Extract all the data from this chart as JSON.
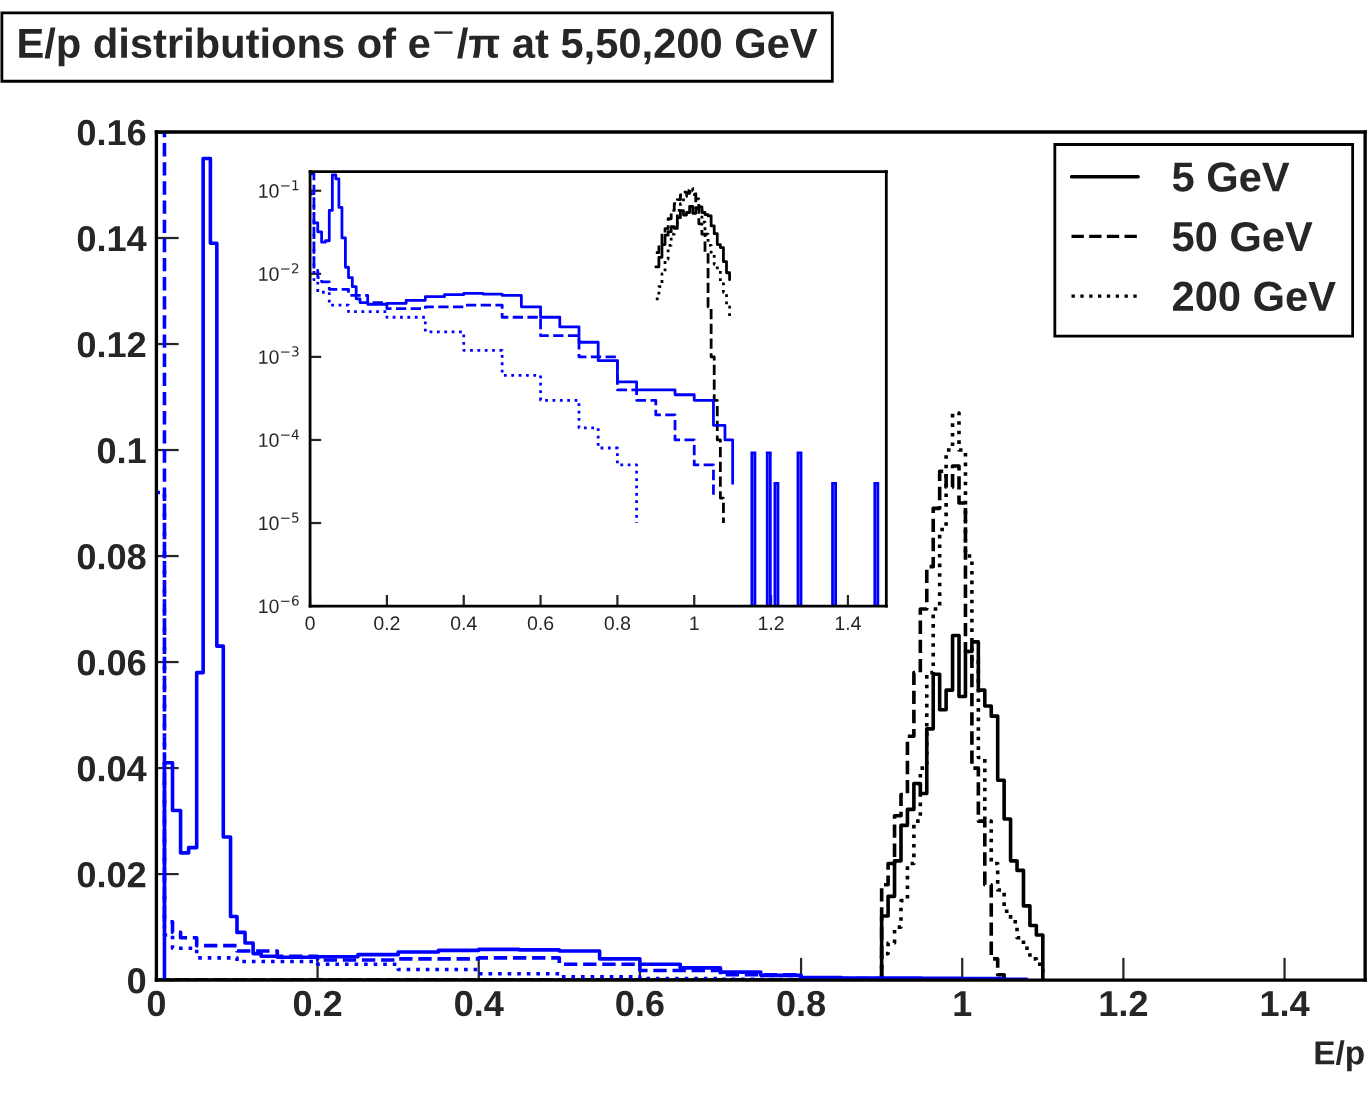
{
  "chart_data": [
    {
      "type": "step",
      "title": "E/p distributions of e$^{−}$/π at 5,50,200 GeV",
      "xlabel": "E/p",
      "xlim": [
        0,
        1.5
      ],
      "ylim": [
        0,
        0.16
      ],
      "xticks": [
        0,
        0.2,
        0.4,
        0.6,
        0.8,
        1,
        1.2,
        1.4
      ],
      "yticks": [
        0,
        0.02,
        0.04,
        0.06,
        0.08,
        0.1,
        0.12,
        0.14,
        0.16
      ],
      "grid": false,
      "legend": "top right",
      "series": [
        {
          "name": "5 GeV",
          "color": "#000000",
          "line_style": "solid",
          "x": [
            0,
            0.9,
            0.908,
            0.916,
            0.924,
            0.932,
            0.94,
            0.948,
            0.956,
            0.964,
            0.972,
            0.98,
            0.988,
            0.996,
            1.004,
            1.012,
            1.02,
            1.028,
            1.036,
            1.044,
            1.052,
            1.06,
            1.068,
            1.076,
            1.084,
            1.092,
            1.1
          ],
          "values": [
            0,
            0.0121,
            0.0158,
            0.0225,
            0.0292,
            0.0322,
            0.0371,
            0.0352,
            0.0474,
            0.0577,
            0.051,
            0.0547,
            0.065,
            0.0535,
            0.062,
            0.0638,
            0.0547,
            0.0517,
            0.0498,
            0.0377,
            0.0304,
            0.0225,
            0.0207,
            0.014,
            0.0103,
            0.0085,
            0
          ]
        },
        {
          "name": "50 GeV",
          "color": "#000000",
          "line_style": "dashed",
          "x": [
            0,
            0.9,
            0.908,
            0.916,
            0.924,
            0.932,
            0.94,
            0.948,
            0.956,
            0.964,
            0.972,
            0.98,
            0.988,
            0.996,
            1.004,
            1.012,
            1.02,
            1.028,
            1.036,
            1.044,
            1.052
          ],
          "values": [
            0,
            0.018,
            0.022,
            0.031,
            0.035,
            0.046,
            0.058,
            0.07,
            0.078,
            0.089,
            0.096,
            0.093,
            0.097,
            0.09,
            0.062,
            0.04,
            0.03,
            0.018,
            0.004,
            0.001,
            0
          ]
        },
        {
          "name": "200 GeV",
          "color": "#000000",
          "line_style": "dotted",
          "x": [
            0,
            0.9,
            0.908,
            0.916,
            0.924,
            0.932,
            0.94,
            0.948,
            0.956,
            0.964,
            0.972,
            0.98,
            0.988,
            0.996,
            1.004,
            1.012,
            1.02,
            1.028,
            1.036,
            1.044,
            1.052,
            1.06,
            1.068,
            1.076,
            1.084,
            1.092,
            1.1
          ],
          "values": [
            0,
            0.005,
            0.007,
            0.01,
            0.015,
            0.022,
            0.03,
            0.04,
            0.058,
            0.07,
            0.085,
            0.1,
            0.107,
            0.1,
            0.08,
            0.06,
            0.042,
            0.03,
            0.022,
            0.017,
            0.013,
            0.011,
            0.008,
            0.006,
            0.004,
            0.003,
            0
          ]
        },
        {
          "color": "#0000ff",
          "line_style": "solid",
          "x": [
            0,
            0.01,
            0.02,
            0.03,
            0.04,
            0.05,
            0.058,
            0.067,
            0.075,
            0.083,
            0.092,
            0.1,
            0.11,
            0.12,
            0.13,
            0.15,
            0.2,
            0.25,
            0.3,
            0.35,
            0.4,
            0.45,
            0.5,
            0.55,
            0.6,
            0.65,
            0.7,
            0.75,
            0.8,
            0.85,
            0.9,
            0.95,
            1.0,
            1.05,
            1.08
          ],
          "values": [
            0,
            0.041,
            0.032,
            0.024,
            0.025,
            0.058,
            0.155,
            0.139,
            0.063,
            0.027,
            0.012,
            0.009,
            0.007,
            0.005,
            0.0045,
            0.0043,
            0.0044,
            0.0048,
            0.0053,
            0.0056,
            0.0058,
            0.0057,
            0.0055,
            0.004,
            0.003,
            0.0023,
            0.0015,
            0.0009,
            0.0005,
            0.0004,
            0.0004,
            0.00035,
            0.0003,
            0.00015,
            0.0001
          ]
        },
        {
          "color": "#0000ff",
          "line_style": "dashed",
          "x": [
            0,
            0.01,
            0.02,
            0.03,
            0.05,
            0.1,
            0.15,
            0.2,
            0.3,
            0.4,
            0.5,
            0.6,
            0.7,
            0.8,
            0.85,
            0.9,
            0.95,
            1.0,
            1.05,
            1.08
          ],
          "values": [
            0.16,
            0.011,
            0.009,
            0.008,
            0.0065,
            0.0055,
            0.0045,
            0.0038,
            0.004,
            0.0042,
            0.003,
            0.0018,
            0.001,
            0.0004,
            0.0003,
            0.0002,
            0.0001,
            5e-05,
            2e-05,
            0
          ]
        },
        {
          "color": "#0000ff",
          "line_style": "dotted",
          "x": [
            0,
            0.01,
            0.02,
            0.05,
            0.1,
            0.2,
            0.3,
            0.4,
            0.5,
            0.6,
            0.7,
            0.75,
            0.8,
            0.85,
            0.87
          ],
          "values": [
            0.092,
            0.0085,
            0.006,
            0.0042,
            0.0035,
            0.003,
            0.002,
            0.0012,
            0.0006,
            0.0003,
            0.00014,
            8e-05,
            5e-05,
            1e-05,
            0
          ]
        }
      ]
    },
    {
      "type": "step",
      "log": "y",
      "xlim": [
        0,
        1.5
      ],
      "ylim": [
        1e-06,
        0.17
      ],
      "xticks": [
        0,
        0.2,
        0.4,
        0.6,
        0.8,
        1,
        1.2,
        1.4
      ],
      "yticks": [
        {
          "value": 1e-06,
          "label": "10$^{−6}$"
        },
        {
          "value": 1e-05,
          "label": "10$^{−5}$"
        },
        {
          "value": 0.0001,
          "label": "10$^{−4}$"
        },
        {
          "value": 0.001,
          "label": "10$^{−3}$"
        },
        {
          "value": 0.01,
          "label": "10$^{−2}$"
        },
        {
          "value": 0.1,
          "label": "10$^{−1}$"
        }
      ],
      "grid": false,
      "series": [
        {
          "color": "#000000",
          "line_style": "solid",
          "x": [
            0.9,
            0.908,
            0.916,
            0.924,
            0.932,
            0.94,
            0.948,
            0.956,
            0.964,
            0.972,
            0.98,
            0.988,
            0.996,
            1.004,
            1.012,
            1.02,
            1.028,
            1.036,
            1.044,
            1.052,
            1.06,
            1.068,
            1.076,
            1.084,
            1.092
          ],
          "values": [
            0.0121,
            0.0158,
            0.0225,
            0.0292,
            0.0322,
            0.0371,
            0.0352,
            0.0474,
            0.0577,
            0.051,
            0.0547,
            0.065,
            0.0535,
            0.062,
            0.0638,
            0.0547,
            0.0517,
            0.0498,
            0.0377,
            0.0304,
            0.0225,
            0.0207,
            0.014,
            0.0103,
            0.0085
          ]
        },
        {
          "color": "#000000",
          "line_style": "dashed",
          "x": [
            0.9,
            0.908,
            0.916,
            0.924,
            0.932,
            0.94,
            0.948,
            0.956,
            0.964,
            0.972,
            0.98,
            0.988,
            0.996,
            1.004,
            1.012,
            1.02,
            1.028,
            1.036,
            1.044,
            1.052,
            1.06,
            1.068,
            1.076
          ],
          "values": [
            0.018,
            0.022,
            0.031,
            0.035,
            0.046,
            0.058,
            0.07,
            0.078,
            0.089,
            0.096,
            0.093,
            0.097,
            0.09,
            0.062,
            0.04,
            0.03,
            0.018,
            0.004,
            0.001,
            0.0003,
            0.0001,
            2e-05,
            1e-05
          ]
        },
        {
          "color": "#000000",
          "line_style": "dotted",
          "x": [
            0.9,
            0.908,
            0.916,
            0.924,
            0.932,
            0.94,
            0.948,
            0.956,
            0.964,
            0.972,
            0.98,
            0.988,
            0.996,
            1.004,
            1.012,
            1.02,
            1.028,
            1.036,
            1.044,
            1.052,
            1.06,
            1.068,
            1.076,
            1.084,
            1.092
          ],
          "values": [
            0.005,
            0.007,
            0.01,
            0.015,
            0.022,
            0.03,
            0.04,
            0.058,
            0.07,
            0.085,
            0.1,
            0.107,
            0.1,
            0.08,
            0.06,
            0.042,
            0.03,
            0.022,
            0.017,
            0.013,
            0.011,
            0.008,
            0.006,
            0.004,
            0.003
          ]
        },
        {
          "color": "#0000ff",
          "line_style": "solid",
          "x": [
            0.01,
            0.02,
            0.03,
            0.04,
            0.05,
            0.058,
            0.067,
            0.075,
            0.083,
            0.092,
            0.1,
            0.11,
            0.12,
            0.13,
            0.15,
            0.2,
            0.25,
            0.3,
            0.35,
            0.4,
            0.45,
            0.5,
            0.55,
            0.6,
            0.65,
            0.7,
            0.75,
            0.8,
            0.85,
            0.9,
            0.95,
            1.0,
            1.05,
            1.08,
            1.1
          ],
          "values": [
            0.041,
            0.032,
            0.024,
            0.025,
            0.058,
            0.155,
            0.139,
            0.063,
            0.027,
            0.012,
            0.009,
            0.007,
            0.005,
            0.0045,
            0.0043,
            0.0044,
            0.0048,
            0.0053,
            0.0056,
            0.0058,
            0.0057,
            0.0055,
            0.004,
            0.003,
            0.0023,
            0.0015,
            0.0009,
            0.0005,
            0.0004,
            0.0004,
            0.00035,
            0.0003,
            0.00015,
            0.0001,
            3e-05
          ]
        },
        {
          "type": "bar",
          "color": "#0000ff",
          "x": [
            1.15,
            1.19,
            1.21,
            1.27,
            1.36,
            1.47
          ],
          "values": [
            7e-05,
            7e-05,
            3e-05,
            7e-05,
            3e-05,
            3e-05
          ]
        },
        {
          "color": "#0000ff",
          "line_style": "dashed",
          "x": [
            0,
            0.01,
            0.02,
            0.03,
            0.05,
            0.1,
            0.15,
            0.2,
            0.3,
            0.4,
            0.5,
            0.6,
            0.7,
            0.8,
            0.85,
            0.9,
            0.95,
            1.0,
            1.05
          ],
          "values": [
            0.16,
            0.011,
            0.009,
            0.008,
            0.0065,
            0.0055,
            0.0045,
            0.0038,
            0.004,
            0.0042,
            0.003,
            0.0018,
            0.001,
            0.0004,
            0.0003,
            0.0002,
            0.0001,
            5e-05,
            2e-05
          ]
        },
        {
          "color": "#0000ff",
          "line_style": "dotted",
          "x": [
            0,
            0.01,
            0.02,
            0.05,
            0.1,
            0.2,
            0.3,
            0.4,
            0.5,
            0.6,
            0.7,
            0.75,
            0.8,
            0.85
          ],
          "values": [
            0.092,
            0.0085,
            0.006,
            0.0042,
            0.0035,
            0.003,
            0.002,
            0.0012,
            0.0006,
            0.0003,
            0.00014,
            8e-05,
            5e-05,
            1e-05
          ]
        }
      ]
    }
  ]
}
